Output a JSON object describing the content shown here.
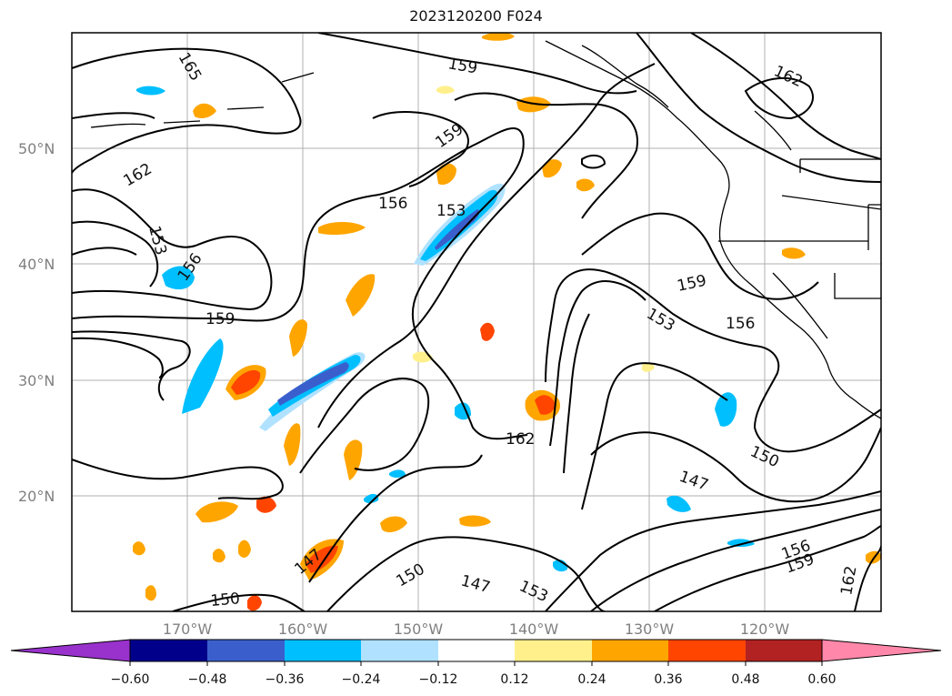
{
  "title": "2023120200 F024",
  "map": {
    "lat_labels": [
      "50°N",
      "40°N",
      "30°N",
      "20°N"
    ],
    "lon_labels": [
      "170°W",
      "160°W",
      "150°W",
      "140°W",
      "130°W",
      "120°W"
    ],
    "contour_labels": [
      "165",
      "159",
      "159",
      "162",
      "162",
      "156",
      "153",
      "153",
      "156",
      "159",
      "159",
      "153",
      "156",
      "162",
      "150",
      "147",
      "147",
      "150",
      "147",
      "153",
      "150",
      "156",
      "159",
      "162"
    ]
  },
  "colorbar": {
    "ticks": [
      "−0.60",
      "−0.48",
      "−0.36",
      "−0.24",
      "−0.12",
      "0.12",
      "0.24",
      "0.36",
      "0.48",
      "0.60"
    ],
    "colors": [
      "#9932cc",
      "#00008b",
      "#3a5fcd",
      "#00bfff",
      "#b0e2ff",
      "#ffffff",
      "#fff08c",
      "#ffa500",
      "#ff4500",
      "#b22222",
      "#ff88aa"
    ]
  }
}
